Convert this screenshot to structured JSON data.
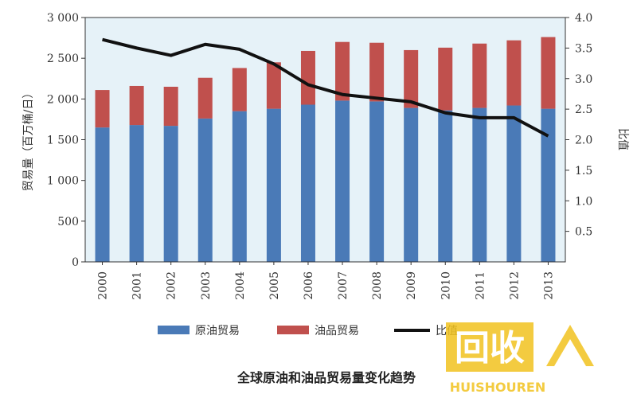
{
  "chart_data": {
    "type": "bar",
    "title": "全球原油和油品贸易量变化趋势",
    "ylabel": "贸易量（百万桶/日）",
    "y2label": "比值",
    "categories": [
      "2000",
      "2001",
      "2002",
      "2003",
      "2004",
      "2005",
      "2006",
      "2007",
      "2008",
      "2009",
      "2010",
      "2011",
      "2012",
      "2013"
    ],
    "ylim": [
      0,
      3000
    ],
    "y2lim": [
      0,
      4.0
    ],
    "yticks": [
      "0",
      "500",
      "1 000",
      "1 500",
      "2 000",
      "2 500",
      "3 000"
    ],
    "y2ticks": [
      "0.5",
      "1.0",
      "1.5",
      "2.0",
      "2.5",
      "3.0",
      "3.5",
      "4.0"
    ],
    "stacked": true,
    "series": [
      {
        "name": "原油贸易",
        "axis": "left",
        "kind": "bar",
        "color": "#4a7ab7",
        "values": [
          1650,
          1680,
          1670,
          1760,
          1850,
          1880,
          1930,
          1980,
          1970,
          1890,
          1860,
          1890,
          1920,
          1880
        ]
      },
      {
        "name": "油品贸易",
        "axis": "left",
        "kind": "bar",
        "color": "#c0504d",
        "values": [
          460,
          480,
          480,
          500,
          530,
          570,
          660,
          720,
          720,
          710,
          770,
          790,
          800,
          880
        ]
      },
      {
        "name": "比值",
        "axis": "right",
        "kind": "line",
        "color": "#111111",
        "values": [
          3.64,
          3.5,
          3.38,
          3.56,
          3.48,
          3.24,
          2.9,
          2.74,
          2.68,
          2.62,
          2.44,
          2.36,
          2.36,
          2.06
        ]
      }
    ],
    "legend_position": "bottom",
    "grid": false,
    "plot_background": "#e6f2f8"
  },
  "watermark": {
    "big_text": "回收",
    "small_text": "HUISHOUREN"
  }
}
